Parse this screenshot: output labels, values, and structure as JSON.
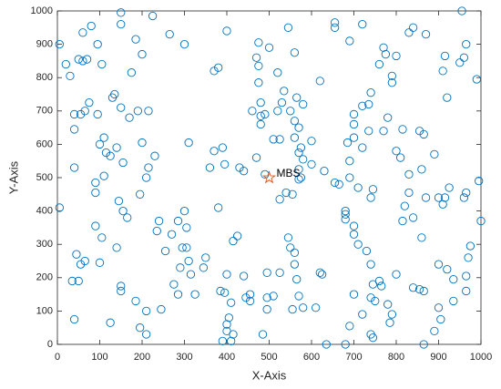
{
  "chart_data": {
    "type": "scatter",
    "xlabel": "X-Axis",
    "ylabel": "Y-Axis",
    "xlim": [
      0,
      1000
    ],
    "ylim": [
      0,
      1000
    ],
    "xticks": [
      0,
      100,
      200,
      300,
      400,
      500,
      600,
      700,
      800,
      900,
      1000
    ],
    "yticks": [
      0,
      100,
      200,
      300,
      400,
      500,
      600,
      700,
      800,
      900,
      1000
    ],
    "grid": false,
    "color": "#0072bd",
    "x": [
      5,
      20,
      30,
      50,
      60,
      70,
      60,
      80,
      55,
      75,
      65,
      95,
      40,
      40,
      100,
      130,
      135,
      150,
      110,
      115,
      140,
      105,
      95,
      150,
      150,
      225,
      265,
      200,
      185,
      175,
      190,
      215,
      170,
      200,
      215,
      210,
      230,
      155,
      110,
      125,
      40,
      5,
      90,
      90,
      90,
      105,
      140,
      155,
      165,
      145,
      195,
      240,
      235,
      255,
      270,
      285,
      295,
      300,
      305,
      305,
      310,
      290,
      275,
      285,
      315,
      325,
      345,
      350,
      380,
      370,
      360,
      390,
      395,
      415,
      425,
      430,
      440,
      370,
      380,
      400,
      300,
      310,
      195,
      210,
      150,
      125,
      35,
      50,
      40,
      55,
      45,
      65,
      100,
      150,
      185,
      210,
      245,
      385,
      395,
      405,
      400,
      400,
      390,
      410,
      415,
      445,
      455,
      440,
      455,
      400,
      410,
      485,
      495,
      510,
      495,
      495,
      525,
      545,
      550,
      560,
      560,
      565,
      570,
      555,
      580,
      610,
      620,
      625,
      635,
      680,
      690,
      700,
      720,
      740,
      745,
      740,
      750,
      740,
      745,
      760,
      765,
      785,
      790,
      780,
      800,
      840,
      855,
      865,
      865,
      890,
      900,
      905,
      935,
      935,
      920,
      900,
      965,
      965,
      975,
      970,
      960,
      965,
      995,
      1000,
      990,
      950,
      960,
      965,
      955,
      915,
      910,
      920,
      870,
      830,
      840,
      800,
      775,
      790,
      790,
      780,
      770,
      800,
      815,
      810,
      855,
      865,
      890,
      830,
      860,
      830,
      820,
      840,
      860,
      870,
      900,
      915,
      925,
      910,
      815,
      745,
      740,
      710,
      680,
      680,
      680,
      710,
      700,
      730,
      700,
      735,
      735,
      740,
      720,
      700,
      700,
      690,
      685,
      700,
      720,
      690,
      665,
      655,
      630,
      600,
      580,
      570,
      575,
      560,
      570,
      560,
      550,
      565,
      580,
      535,
      530,
      570,
      575,
      570,
      555,
      540,
      525,
      490,
      470,
      460,
      475,
      475,
      470,
      475,
      500,
      520,
      510,
      525,
      480,
      480,
      480,
      520,
      545,
      560,
      600,
      620,
      655,
      655,
      690,
      720,
      760,
      770,
      490
    ],
    "values": [
      900,
      840,
      805,
      855,
      850,
      855,
      935,
      955,
      690,
      725,
      700,
      690,
      690,
      645,
      600,
      740,
      750,
      710,
      620,
      575,
      590,
      840,
      900,
      960,
      995,
      985,
      930,
      870,
      915,
      815,
      700,
      700,
      680,
      605,
      530,
      500,
      565,
      545,
      505,
      565,
      530,
      410,
      485,
      455,
      355,
      320,
      290,
      400,
      380,
      430,
      450,
      370,
      340,
      280,
      330,
      370,
      290,
      400,
      350,
      290,
      250,
      230,
      180,
      150,
      210,
      150,
      230,
      260,
      410,
      580,
      530,
      590,
      540,
      310,
      325,
      530,
      520,
      820,
      830,
      940,
      900,
      605,
      50,
      30,
      160,
      65,
      190,
      190,
      75,
      240,
      270,
      250,
      245,
      175,
      130,
      100,
      105,
      160,
      155,
      80,
      60,
      40,
      10,
      10,
      30,
      140,
      130,
      205,
      150,
      210,
      125,
      30,
      140,
      145,
      105,
      215,
      215,
      320,
      290,
      275,
      240,
      195,
      145,
      105,
      110,
      110,
      215,
      210,
      0,
      0,
      55,
      150,
      90,
      30,
      20,
      140,
      130,
      240,
      180,
      190,
      175,
      65,
      90,
      120,
      210,
      170,
      165,
      160,
      0,
      40,
      110,
      75,
      130,
      195,
      225,
      240,
      205,
      160,
      295,
      260,
      440,
      455,
      490,
      370,
      795,
      845,
      860,
      900,
      1000,
      865,
      820,
      740,
      930,
      935,
      950,
      865,
      870,
      805,
      785,
      680,
      640,
      580,
      645,
      560,
      640,
      630,
      570,
      510,
      525,
      455,
      415,
      380,
      320,
      440,
      440,
      440,
      470,
      420,
      370,
      465,
      440,
      470,
      400,
      390,
      375,
      300,
      330,
      280,
      355,
      640,
      720,
      755,
      715,
      690,
      660,
      550,
      605,
      620,
      590,
      500,
      480,
      485,
      520,
      540,
      555,
      525,
      590,
      620,
      650,
      670,
      700,
      740,
      720,
      760,
      725,
      575,
      500,
      495,
      450,
      455,
      435,
      510,
      560,
      700,
      785,
      835,
      860,
      905,
      890,
      700,
      615,
      615,
      660,
      685,
      725,
      815,
      950,
      875,
      610,
      790,
      950,
      965,
      910,
      960,
      840,
      890,
      690
    ],
    "annotations": [
      {
        "text": "MBS",
        "x": 500,
        "y": 500,
        "color": "#d95319"
      }
    ]
  }
}
